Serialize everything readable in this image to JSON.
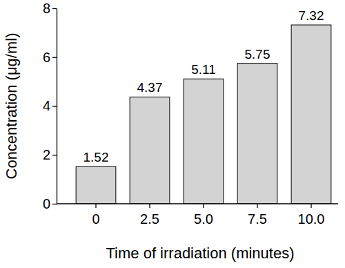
{
  "chart_data": {
    "type": "bar",
    "x_label": "Time of irradiation (minutes)",
    "y_label": "Concentration (μg/ml)",
    "categories": [
      "0",
      "2.5",
      "5.0",
      "7.5",
      "10.0"
    ],
    "values": [
      1.52,
      4.37,
      5.11,
      5.75,
      7.32
    ],
    "color": "#d3d3d3",
    "ylim": [
      0,
      8
    ],
    "yticks": [
      0,
      2,
      4,
      6,
      8
    ],
    "grid": false,
    "data_labels": true
  }
}
